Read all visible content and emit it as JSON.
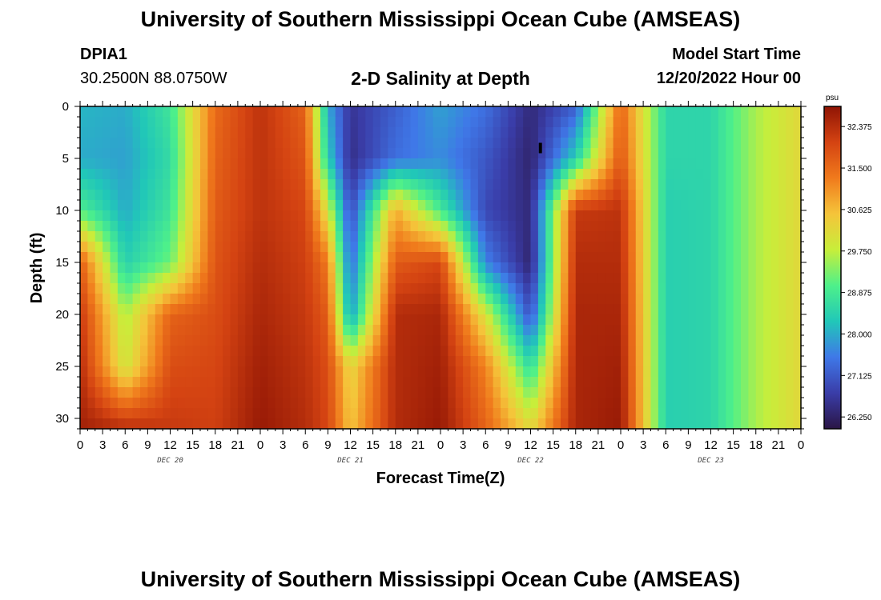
{
  "header": {
    "title": "University of Southern Mississippi Ocean Cube (AMSEAS)",
    "station_id": "DPIA1",
    "station_coords": "30.2500N  88.0750W",
    "subtitle": "2-D Salinity at Depth",
    "model_start_label": "Model Start Time",
    "model_start_value": "12/20/2022 Hour 00"
  },
  "footer": {
    "title": "University of Southern Mississippi Ocean Cube (AMSEAS)"
  },
  "chart_data": {
    "type": "heatmap",
    "title": "2-D Salinity at Depth",
    "xlabel": "Forecast Time(Z)",
    "ylabel": "Depth (ft)",
    "units": "psu",
    "x_range_hours": [
      0,
      96
    ],
    "x_tick_labels": [
      "0",
      "3",
      "6",
      "9",
      "12",
      "15",
      "18",
      "21",
      "0",
      "3",
      "6",
      "9",
      "12",
      "15",
      "18",
      "21",
      "0",
      "3",
      "6",
      "9",
      "12",
      "15",
      "18",
      "21",
      "0",
      "3",
      "6",
      "9",
      "12",
      "15",
      "18",
      "21",
      "0"
    ],
    "day_labels": [
      {
        "label": "DEC 20",
        "hour": 12
      },
      {
        "label": "DEC 21",
        "hour": 36
      },
      {
        "label": "DEC 22",
        "hour": 60
      },
      {
        "label": "DEC 23",
        "hour": 84
      }
    ],
    "y_range_ft": [
      0,
      31
    ],
    "y_ticks": [
      0,
      5,
      10,
      15,
      20,
      25,
      30
    ],
    "colorbar": {
      "min": 26.0,
      "max": 32.8,
      "tick_values": [
        26.25,
        27.125,
        28.0,
        28.875,
        29.75,
        30.625,
        31.5,
        32.375
      ],
      "tick_labels": [
        "26.250",
        "27.125",
        "28.000",
        "28.875",
        "29.750",
        "30.625",
        "31.500",
        "32.375"
      ]
    },
    "colormap": [
      "#2a1545",
      "#3a3da8",
      "#3f78e8",
      "#21c7b8",
      "#4ef08a",
      "#c8ee3a",
      "#f5c43a",
      "#f07a1c",
      "#d44312",
      "#8f1404"
    ],
    "grid": false,
    "field": {
      "hours": [
        0,
        6,
        12,
        18,
        24,
        30,
        33,
        36,
        42,
        48,
        54,
        60,
        66,
        72,
        78,
        84,
        90,
        96
      ],
      "depths": [
        0,
        5,
        10,
        15,
        20,
        25,
        31
      ],
      "values": [
        [
          28.1,
          28.0,
          28.8,
          31.5,
          32.3,
          31.6,
          28.0,
          26.6,
          27.2,
          27.9,
          27.4,
          26.4,
          27.2,
          31.6,
          28.5,
          28.5,
          29.6,
          30.2
        ],
        [
          28.0,
          27.9,
          28.6,
          31.6,
          32.3,
          31.8,
          28.4,
          26.5,
          27.4,
          27.7,
          27.1,
          26.3,
          28.4,
          31.8,
          28.5,
          28.5,
          29.6,
          30.2
        ],
        [
          29.0,
          28.0,
          28.8,
          31.7,
          32.3,
          32.0,
          30.0,
          26.9,
          30.8,
          28.9,
          26.9,
          26.4,
          32.2,
          32.3,
          28.4,
          28.5,
          29.6,
          30.2
        ],
        [
          31.7,
          28.4,
          29.2,
          31.8,
          32.4,
          32.1,
          31.3,
          27.3,
          31.7,
          32.0,
          27.6,
          26.3,
          32.4,
          32.4,
          28.4,
          28.5,
          29.6,
          30.2
        ],
        [
          32.2,
          29.6,
          31.6,
          31.9,
          32.5,
          32.2,
          31.7,
          27.8,
          32.4,
          32.5,
          30.0,
          27.0,
          32.5,
          32.5,
          28.4,
          28.5,
          29.6,
          30.2
        ],
        [
          32.4,
          29.9,
          31.9,
          32.0,
          32.6,
          32.3,
          31.9,
          30.2,
          32.4,
          32.6,
          31.2,
          28.6,
          32.5,
          32.6,
          28.4,
          28.5,
          29.6,
          30.2
        ],
        [
          32.6,
          32.4,
          32.2,
          32.1,
          32.7,
          32.4,
          32.0,
          30.5,
          32.4,
          32.7,
          31.6,
          30.2,
          32.5,
          32.7,
          28.4,
          28.5,
          29.6,
          30.2
        ]
      ]
    },
    "marker": {
      "hour": 61.3,
      "depth_top": 3.5,
      "depth_bottom": 4.5
    }
  }
}
